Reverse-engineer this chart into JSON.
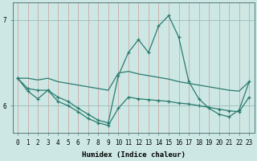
{
  "xlabel": "Humidex (Indice chaleur)",
  "bg_color": "#cde8e4",
  "line_color": "#2a7a6e",
  "vgrid_color": "#cc9999",
  "hgrid_color": "#99bbbb",
  "xlim": [
    -0.5,
    23.5
  ],
  "ylim": [
    5.68,
    7.2
  ],
  "yticks": [
    6,
    7
  ],
  "xticks": [
    0,
    1,
    2,
    3,
    4,
    5,
    6,
    7,
    8,
    9,
    10,
    11,
    12,
    13,
    14,
    15,
    16,
    17,
    18,
    19,
    20,
    21,
    22,
    23
  ],
  "line_jagged_x": [
    0,
    1,
    2,
    3,
    4,
    5,
    6,
    7,
    8,
    9,
    10,
    11,
    12,
    13,
    14,
    15,
    16,
    17,
    18,
    19,
    20,
    21,
    22,
    23
  ],
  "line_jagged_y": [
    6.32,
    6.2,
    6.18,
    6.18,
    6.1,
    6.05,
    5.97,
    5.9,
    5.83,
    5.8,
    6.35,
    6.62,
    6.77,
    6.62,
    6.93,
    7.05,
    6.8,
    6.28,
    6.08,
    5.97,
    5.9,
    5.87,
    5.95,
    6.28
  ],
  "line_mid_x": [
    0,
    1,
    2,
    3,
    4,
    5,
    6,
    7,
    8,
    9,
    10,
    11,
    12,
    13,
    14,
    15,
    16,
    17,
    18,
    19,
    20,
    21,
    22,
    23
  ],
  "line_mid_y": [
    6.32,
    6.32,
    6.3,
    6.32,
    6.28,
    6.26,
    6.24,
    6.22,
    6.2,
    6.18,
    6.38,
    6.4,
    6.37,
    6.35,
    6.33,
    6.31,
    6.28,
    6.26,
    6.24,
    6.22,
    6.2,
    6.18,
    6.17,
    6.28
  ],
  "line_low_x": [
    0,
    1,
    2,
    3,
    4,
    5,
    6,
    7,
    8,
    9,
    10,
    11,
    12,
    13,
    14,
    15,
    16,
    17,
    18,
    19,
    20,
    21,
    22,
    23
  ],
  "line_low_y": [
    6.32,
    6.17,
    6.08,
    6.18,
    6.05,
    6.0,
    5.93,
    5.85,
    5.8,
    5.77,
    5.97,
    6.1,
    6.08,
    6.07,
    6.06,
    6.05,
    6.03,
    6.02,
    6.0,
    5.98,
    5.96,
    5.94,
    5.93,
    6.1
  ]
}
